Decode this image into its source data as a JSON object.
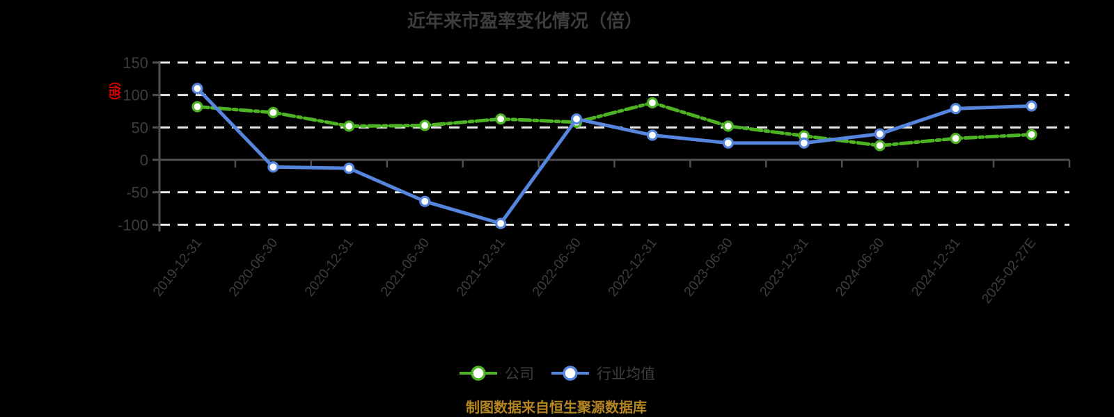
{
  "page": {
    "title": "近年来市盈率变化情况（倍）",
    "y_axis_unit_label": "（倍）",
    "caption": "制图数据来自恒生聚源数据库"
  },
  "colors": {
    "background": "#000000",
    "title_text": "#3d3d3d",
    "axis_text": "#3d3d3d",
    "axis_line": "#4f4f4f",
    "gridline": "#e8e8e8",
    "unit_label": "#e60000",
    "caption_text": "#b5861f",
    "legend_text": "#3f3f3f",
    "marker_fill": "#ffffff"
  },
  "chart_data": {
    "type": "line",
    "title": "近年来市盈率变化情况（倍）",
    "y_unit": "倍",
    "categories": [
      "2019-12-31",
      "2020-06-30",
      "2020-12-31",
      "2021-06-30",
      "2021-12-31",
      "2022-06-30",
      "2022-12-31",
      "2023-06-30",
      "2023-12-31",
      "2024-06-30",
      "2024-12-31",
      "2025-02-27E"
    ],
    "series": [
      {
        "key": "company",
        "name": "公司",
        "color": "#4db224",
        "line_style": "dashed",
        "marker": "circle",
        "values": [
          82,
          73,
          52,
          53,
          63,
          58,
          88,
          52,
          37,
          22,
          33,
          39
        ]
      },
      {
        "key": "industry",
        "name": "行业均值",
        "color": "#5585dd",
        "line_style": "solid",
        "marker": "circle",
        "values": [
          110,
          -11,
          -13,
          -64,
          -98,
          63,
          38,
          26,
          26,
          40,
          79,
          83
        ]
      }
    ],
    "ylim": [
      -100,
      150
    ],
    "yticks": [
      150,
      100,
      50,
      0,
      -50,
      -100
    ],
    "grid": "horizontal-dashed",
    "x_label_rotation": -52,
    "legend_position": "bottom"
  }
}
